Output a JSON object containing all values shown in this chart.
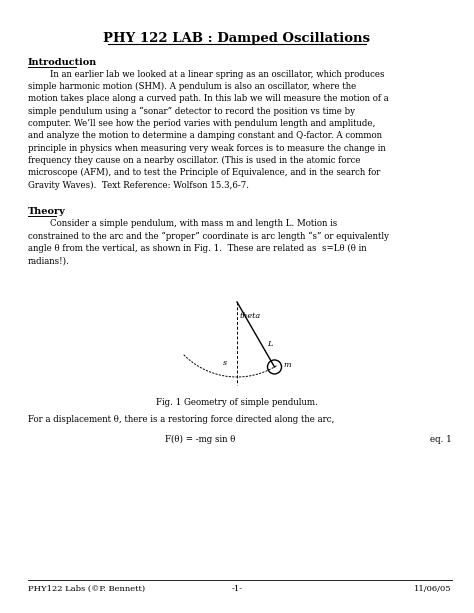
{
  "title": "PHY 122 LAB : Damped Oscillations",
  "intro_heading": "Introduction",
  "intro_text": "        In an earlier lab we looked at a linear spring as an oscillator, which produces\nsimple harmonic motion (SHM). A pendulum is also an oscillator, where the\nmotion takes place along a curved path. In this lab we will measure the motion of a\nsimple pendulum using a “sonar” detector to record the position vs time by\ncomputer. We’ll see how the period varies with pendulum length and amplitude,\nand analyze the motion to determine a damping constant and Q-factor. A common\nprinciple in physics when measuring very weak forces is to measure the change in\nfrequency they cause on a nearby oscillator. (This is used in the atomic force\nmicroscope (AFM), and to test the Principle of Equivalence, and in the search for\nGravity Waves).  Text Reference: Wolfson 15.3,6-7.",
  "theory_heading": "Theory",
  "theory_text": "        Consider a simple pendulum, with mass m and length L. Motion is\nconstrained to the arc and the “proper” coordinate is arc length “s” or equivalently\nangle θ from the vertical, as shown in Fig. 1.  These are related as  s=Lθ (θ in\nradians!).",
  "fig_caption": "Fig. 1 Geometry of simple pendulum.",
  "displacement_text": "For a displacement θ, there is a restoring force directed along the arc,",
  "equation": "F(θ) = -mg sin θ",
  "eq_label": "eq. 1",
  "footer_left": "PHY122 Labs (©P. Bennett)",
  "footer_center": "-1-",
  "footer_right": "11/06/05",
  "bg_color": "#ffffff",
  "text_color": "#000000",
  "font_size_title": 9.5,
  "font_size_body": 6.2,
  "font_size_heading": 7.0,
  "font_size_footer": 6.0,
  "font_size_labels": 5.8
}
